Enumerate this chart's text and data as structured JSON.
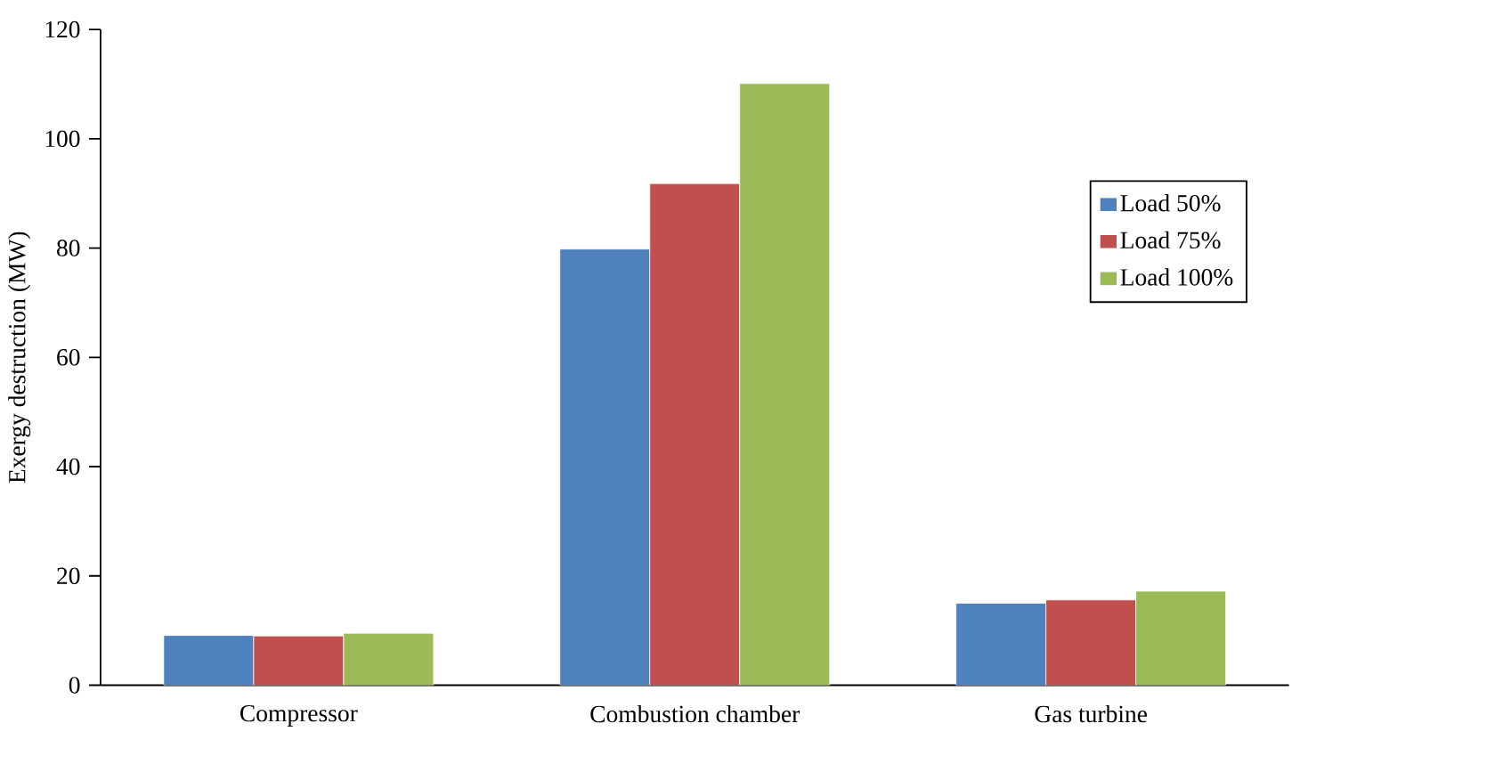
{
  "chart_data": {
    "type": "bar",
    "ylabel": "Exergy destruction (MW)",
    "categories": [
      "Compressor",
      "Combustion chamber",
      "Gas turbine"
    ],
    "series": [
      {
        "name": "Load 50%",
        "color": "#4f81bd",
        "values": [
          9.1,
          79.8,
          15.0
        ]
      },
      {
        "name": "Load 75%",
        "color": "#c0504d",
        "values": [
          9.0,
          91.8,
          15.6
        ]
      },
      {
        "name": "Load 100%",
        "color": "#9bbb59",
        "values": [
          9.5,
          110.1,
          17.2
        ]
      }
    ],
    "ylim": [
      0,
      120
    ],
    "yticks": [
      0,
      20,
      40,
      60,
      80,
      100,
      120
    ],
    "grid": false,
    "legend": "top right"
  }
}
